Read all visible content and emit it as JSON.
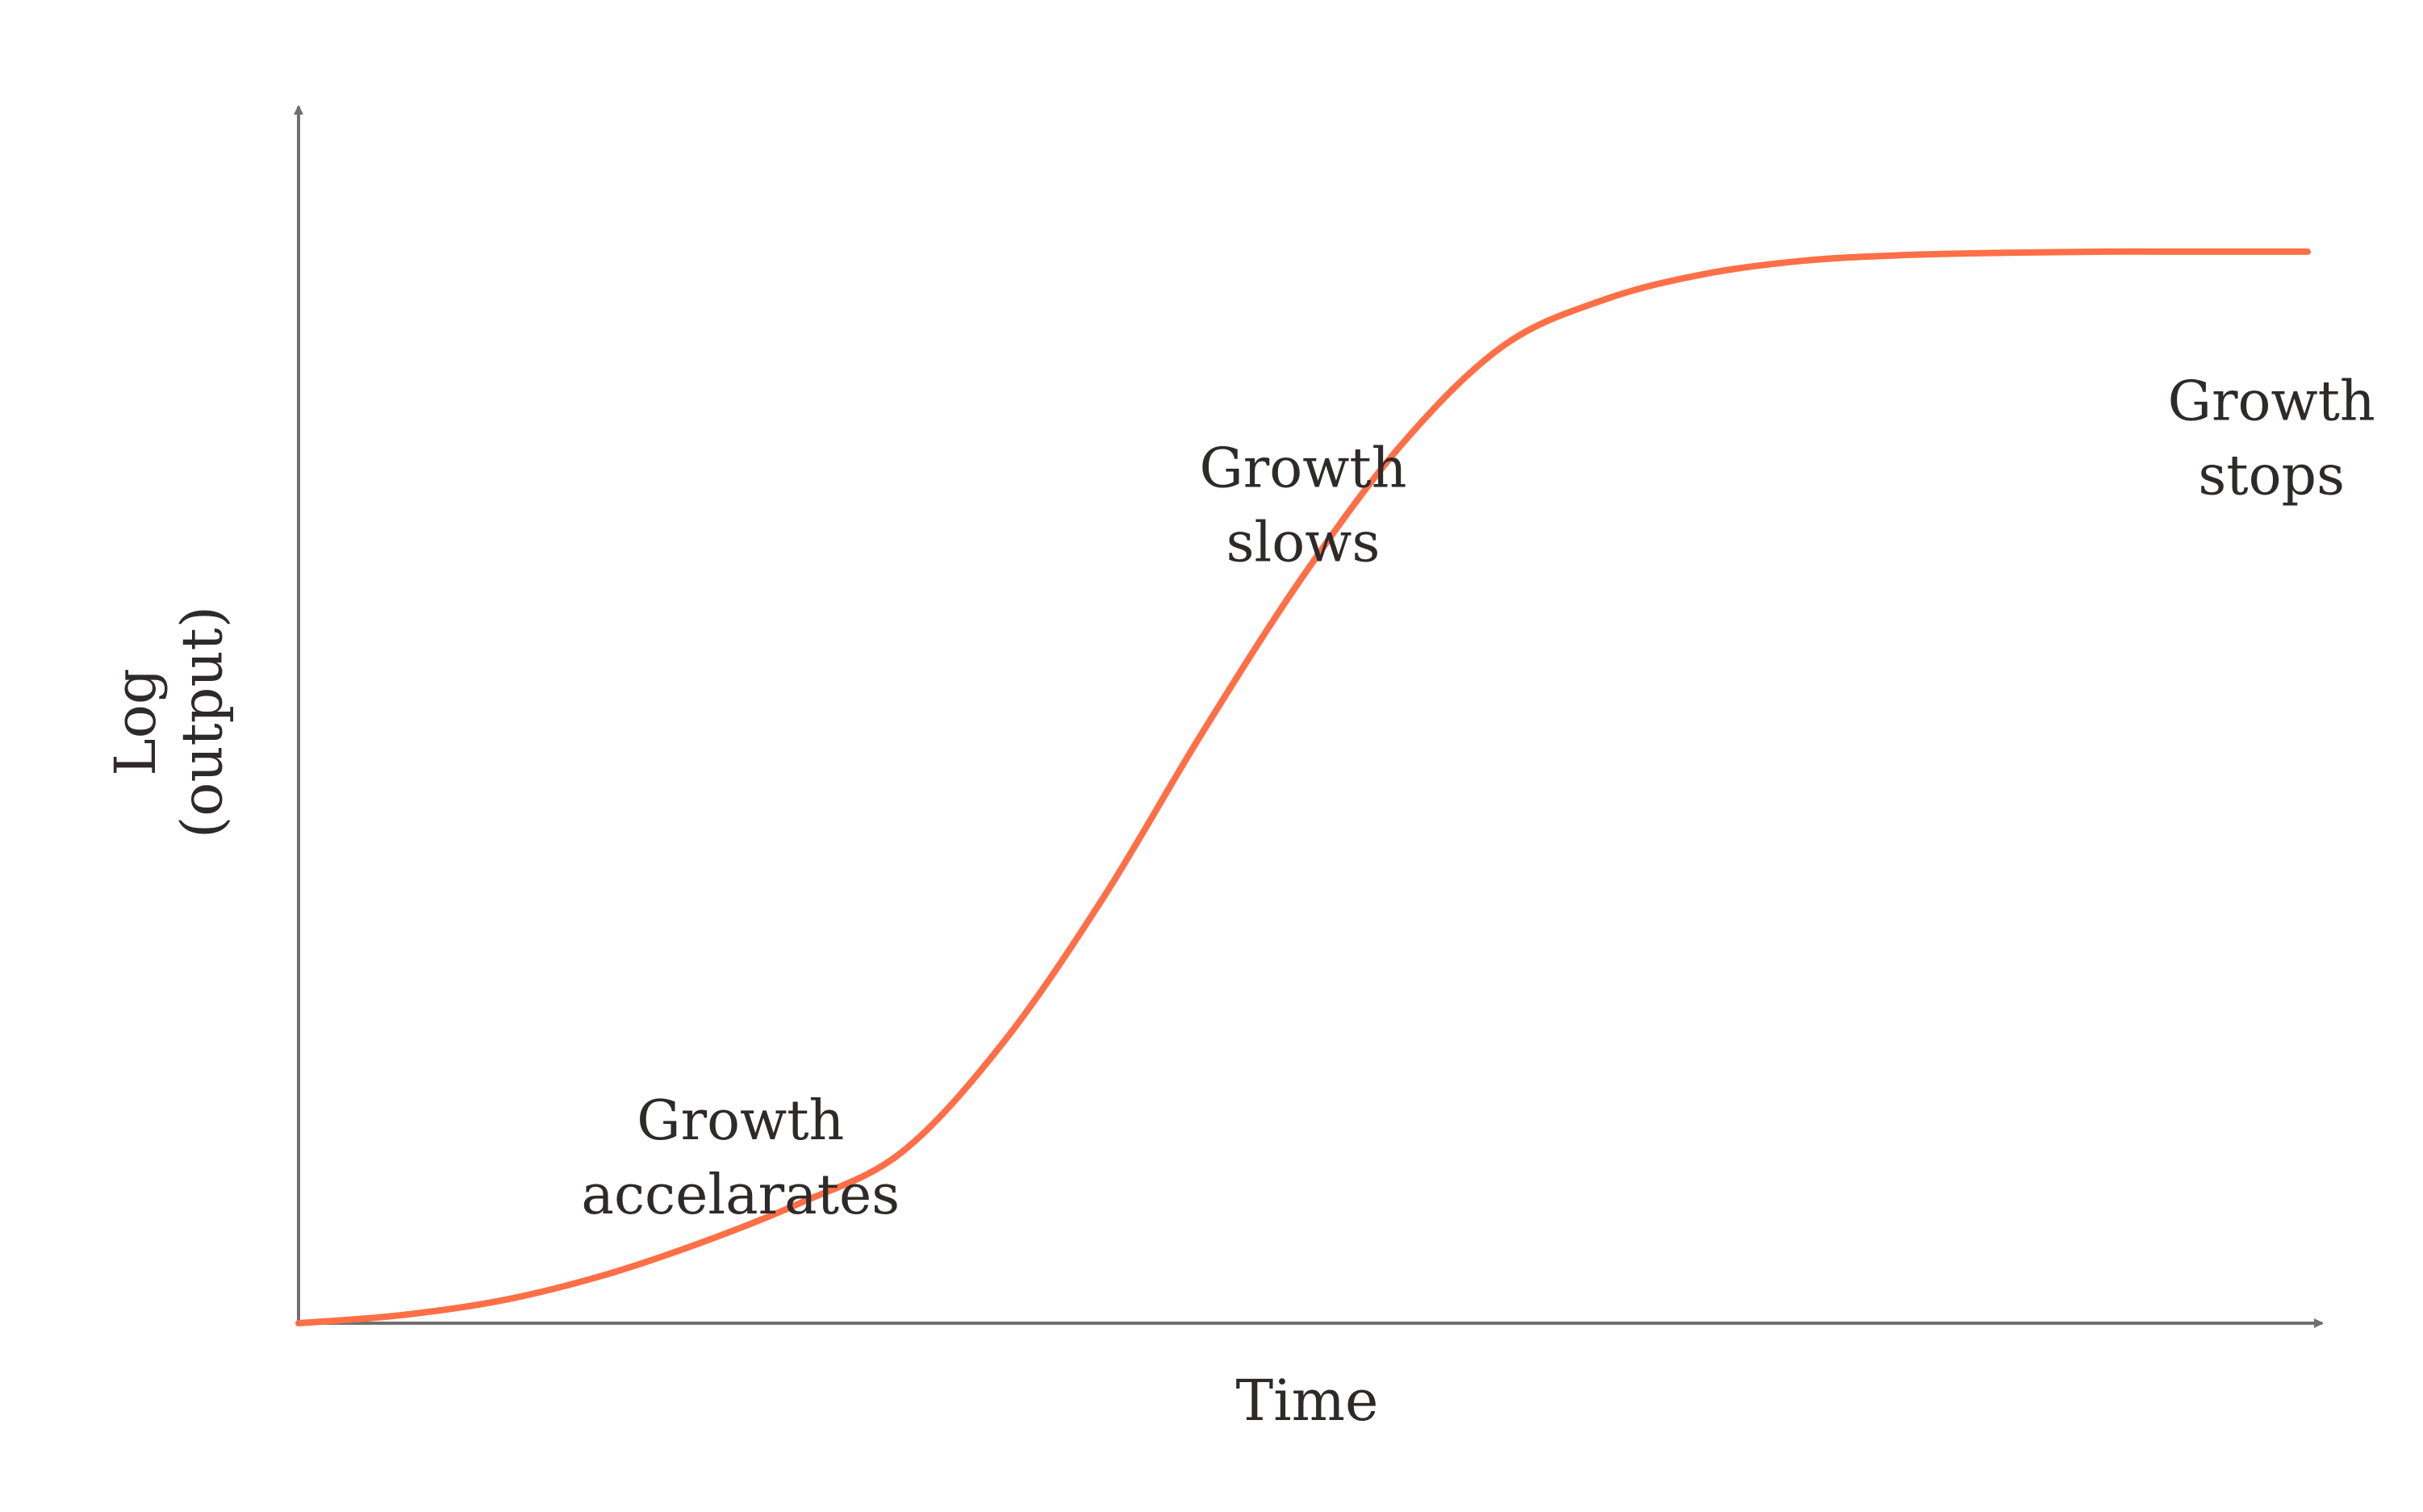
{
  "chart_data": {
    "type": "line",
    "title": "",
    "xlabel": "Time",
    "ylabel": "Log (output)",
    "ylabel_lines": [
      "Log",
      "(output)"
    ],
    "xlim": [
      0,
      100
    ],
    "ylim": [
      0,
      100
    ],
    "grid": false,
    "legend": "none",
    "series": [
      {
        "color": "#FF6F47",
        "x": [
          0,
          5,
          10,
          15,
          20,
          25,
          30,
          35,
          40,
          45,
          50,
          55,
          60,
          65,
          70,
          75,
          80,
          85,
          90,
          95,
          100
        ],
        "y": [
          0,
          0.7,
          2,
          4.2,
          7.2,
          10.8,
          15.3,
          25,
          38,
          53,
          67,
          79,
          87.7,
          91.8,
          94.1,
          95.3,
          95.8,
          96,
          96.1,
          96.1,
          96.1
        ]
      }
    ],
    "annotations": [
      {
        "id": "accel",
        "lines": [
          "Growth",
          "accelarates"
        ],
        "x": 22,
        "y": 16.5
      },
      {
        "id": "slows",
        "lines": [
          "Growth",
          "slows"
        ],
        "x": 50,
        "y": 75
      },
      {
        "id": "stops",
        "lines": [
          "Growth",
          "stops"
        ],
        "x": 98.2,
        "y": 81
      }
    ],
    "colors": {
      "line": "#FF6F47",
      "axis": "#6f6f6f",
      "text": "#2f2a2a"
    }
  }
}
